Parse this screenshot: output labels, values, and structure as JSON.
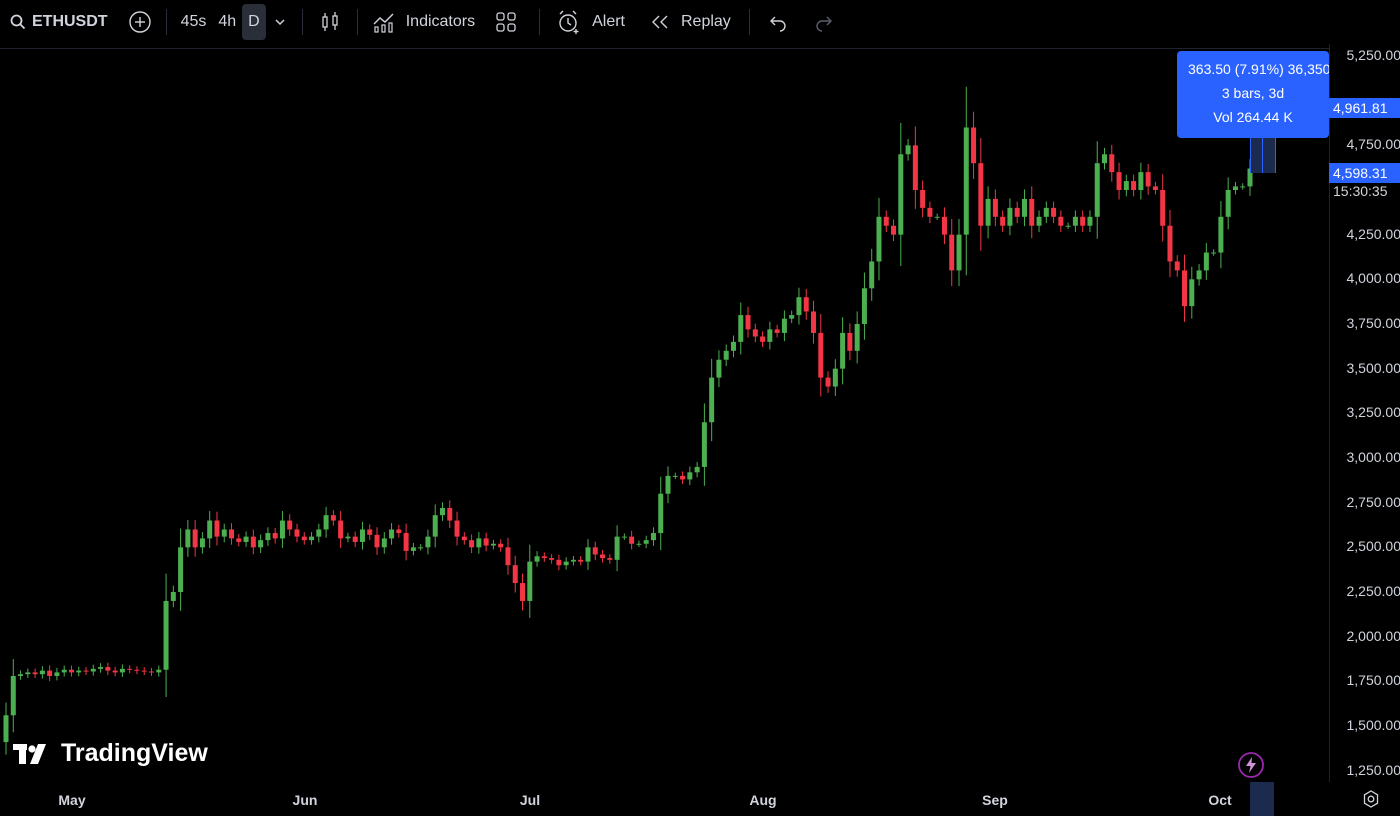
{
  "toolbar": {
    "symbol": "ETHUSDT",
    "timeframes": [
      "45s",
      "4h",
      "D"
    ],
    "indicators_label": "Indicators",
    "alert_label": "Alert",
    "replay_label": "Replay"
  },
  "price_scale": {
    "labels": [
      "5,250.00",
      "4,750.00",
      "4,250.00",
      "4,000.00",
      "3,750.00",
      "3,500.00",
      "3,250.00",
      "3,000.00",
      "2,750.00",
      "2,500.00",
      "2,250.00",
      "2,000.00",
      "1,750.00",
      "1,500.00",
      "1,250.00"
    ],
    "label_values": [
      5250,
      4750,
      4250,
      4000,
      3750,
      3500,
      3250,
      3000,
      2750,
      2500,
      2250,
      2000,
      1750,
      1500,
      1250
    ],
    "tag_high": "4,961.81",
    "tag_high_value": 4961.81,
    "tag_last": "4,598.31",
    "tag_last_value": 4598.31,
    "countdown": "15:30:35"
  },
  "time_scale": {
    "labels": [
      "May",
      "Jun",
      "Jul",
      "Aug",
      "Sep",
      "Oct"
    ]
  },
  "measure_tooltip": {
    "line1": "363.50 (7.91%) 36,350",
    "line2": "3 bars, 3d",
    "line3": "Vol 264.44 K"
  },
  "branding": {
    "logo_text": "TradingView"
  },
  "colors": {
    "up": "#26a69a",
    "up_green": "#4caf50",
    "down": "#f23645",
    "accent": "#2962ff"
  },
  "chart_data": {
    "type": "candlestick",
    "symbol": "ETHUSDT",
    "interval": "D",
    "ylim": [
      1180,
      5320
    ],
    "x_ticks": [
      "May",
      "Jun",
      "Jul",
      "Aug",
      "Sep",
      "Oct"
    ],
    "closes": [
      1560,
      1780,
      1790,
      1800,
      1790,
      1810,
      1780,
      1800,
      1815,
      1800,
      1810,
      1805,
      1820,
      1830,
      1810,
      1800,
      1820,
      1815,
      1810,
      1805,
      1800,
      1815,
      2200,
      2250,
      2500,
      2600,
      2500,
      2550,
      2650,
      2560,
      2600,
      2550,
      2530,
      2560,
      2500,
      2540,
      2580,
      2550,
      2650,
      2600,
      2560,
      2540,
      2560,
      2600,
      2680,
      2650,
      2550,
      2560,
      2530,
      2600,
      2570,
      2500,
      2550,
      2600,
      2580,
      2480,
      2500,
      2500,
      2560,
      2680,
      2720,
      2650,
      2560,
      2540,
      2500,
      2550,
      2510,
      2520,
      2500,
      2400,
      2300,
      2200,
      2420,
      2450,
      2440,
      2430,
      2400,
      2420,
      2430,
      2420,
      2500,
      2460,
      2440,
      2430,
      2560,
      2560,
      2520,
      2520,
      2540,
      2580,
      2800,
      2900,
      2900,
      2880,
      2920,
      2950,
      3200,
      3450,
      3550,
      3600,
      3650,
      3800,
      3720,
      3680,
      3650,
      3720,
      3700,
      3780,
      3800,
      3900,
      3820,
      3700,
      3450,
      3400,
      3500,
      3700,
      3600,
      3750,
      3950,
      4100,
      4350,
      4300,
      4250,
      4700,
      4750,
      4500,
      4400,
      4350,
      4350,
      4250,
      4050,
      4250,
      4850,
      4650,
      4300,
      4450,
      4350,
      4300,
      4400,
      4350,
      4450,
      4300,
      4350,
      4400,
      4350,
      4300,
      4300,
      4350,
      4300,
      4350,
      4650,
      4700,
      4600,
      4500,
      4550,
      4500,
      4600,
      4520,
      4500,
      4300,
      4100,
      4050,
      3850,
      4000,
      4050,
      4150,
      4150,
      4350,
      4500,
      4520,
      4520,
      4620
    ],
    "measured_move": {
      "change": 363.5,
      "change_pct": 7.91,
      "bars": 3,
      "span": "3d",
      "volume": "264.44 K"
    }
  }
}
